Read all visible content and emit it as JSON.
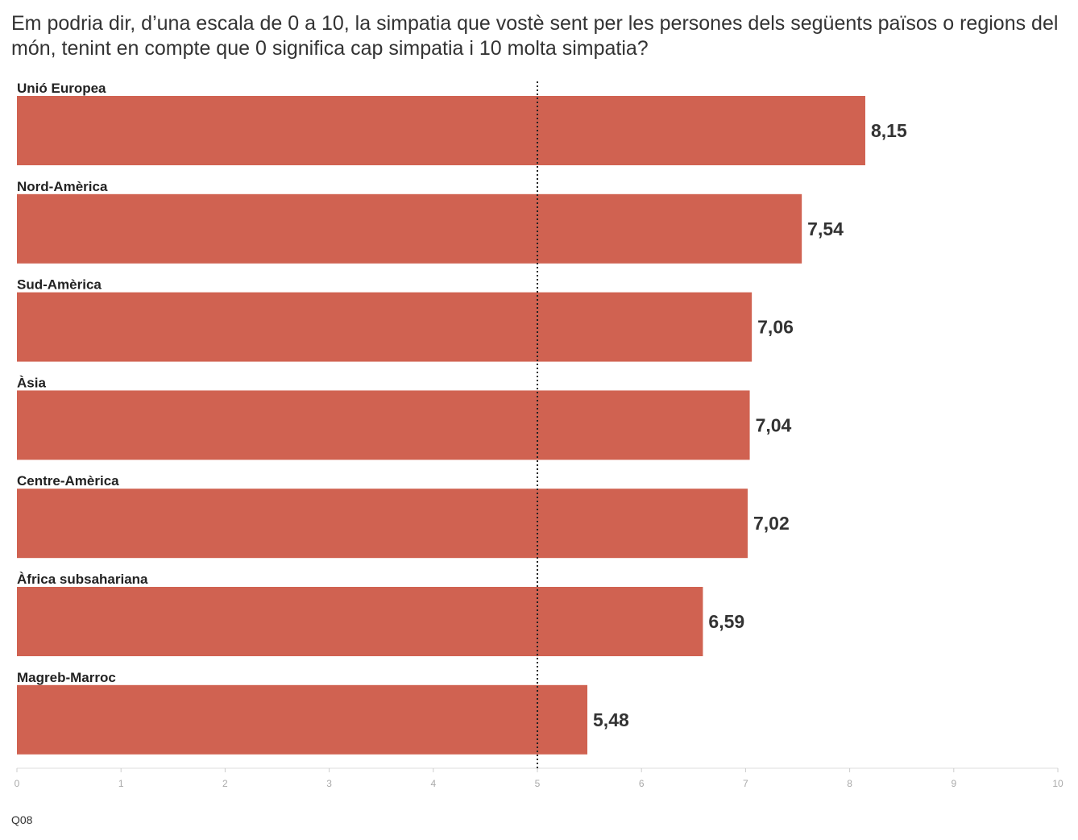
{
  "chart_data": {
    "type": "bar",
    "orientation": "horizontal",
    "title": "Em podria dir, d’una escala de 0 a 10, la simpatia que vostè sent per les persones dels següents països o regions del món, tenint en compte que 0 significa cap simpatia i 10 molta simpatia?",
    "categories": [
      "Unió Europea",
      "Nord-Amèrica",
      "Sud-Amèrica",
      "Àsia",
      "Centre-Amèrica",
      "Àfrica subsahariana",
      "Magreb-Marroc"
    ],
    "values": [
      8.15,
      7.54,
      7.06,
      7.04,
      7.02,
      6.59,
      5.48
    ],
    "value_labels": [
      "8,15",
      "7,54",
      "7,06",
      "7,04",
      "7,02",
      "6,59",
      "5,48"
    ],
    "xlim": [
      0,
      10
    ],
    "x_ticks": [
      "0",
      "1",
      "2",
      "3",
      "4",
      "5",
      "6",
      "7",
      "8",
      "9",
      "10"
    ],
    "reference_line": 5,
    "reference_line_style": "dotted",
    "bar_color": "#d06251",
    "grid": false,
    "legend": "none",
    "note": "Q08"
  }
}
